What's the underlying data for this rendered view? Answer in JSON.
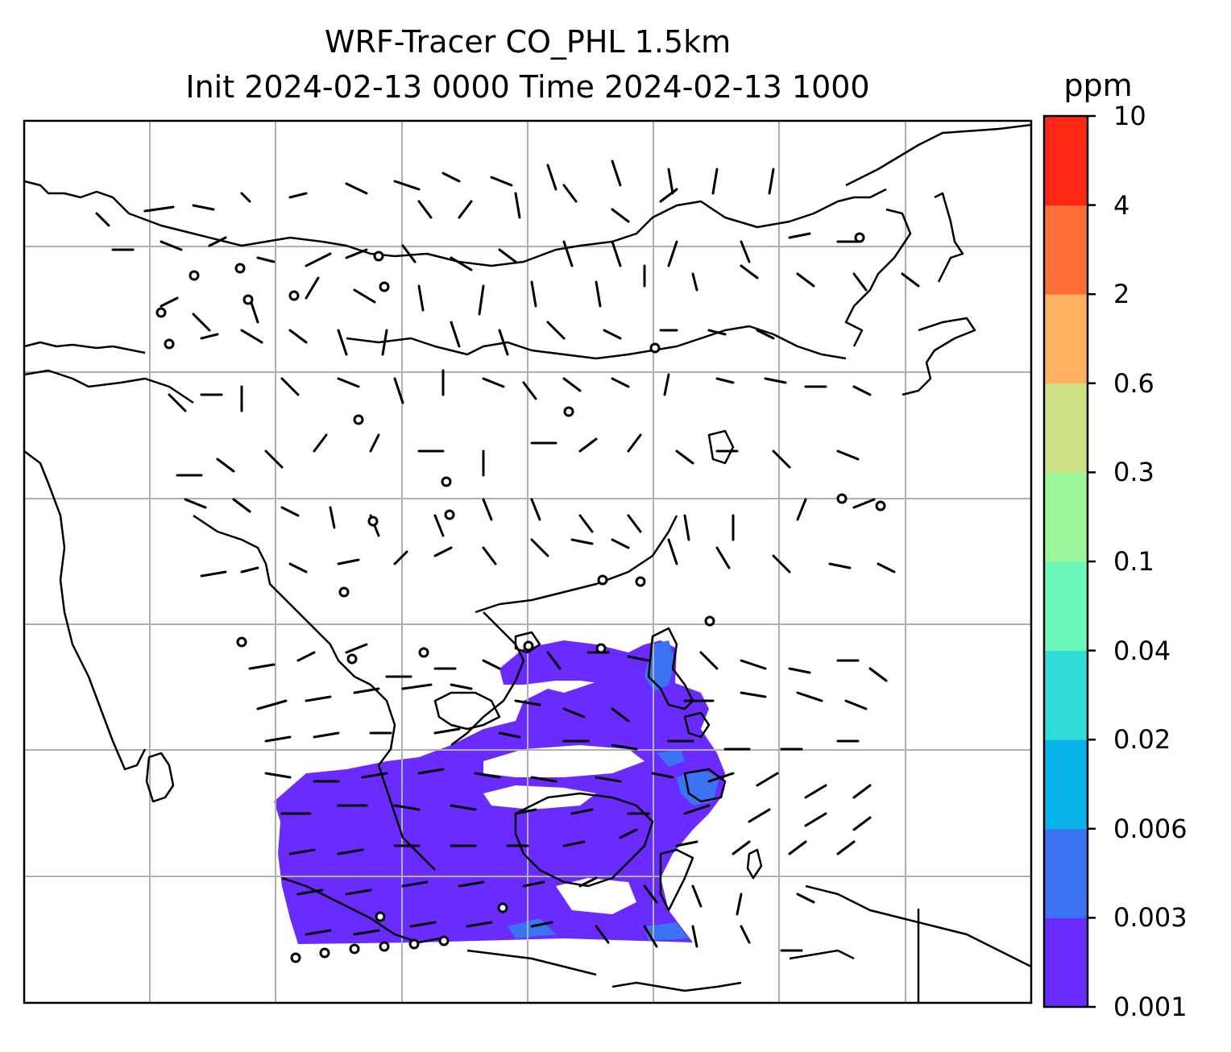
{
  "title": {
    "line1": "WRF-Tracer CO_PHL 1.5km",
    "line2": "Init 2024-02-13 0000 Time 2024-02-13 1000"
  },
  "colorbar": {
    "unit": "ppm",
    "ticks": [
      "0.001",
      "0.003",
      "0.006",
      "0.02",
      "0.04",
      "0.1",
      "0.3",
      "0.6",
      "2",
      "4",
      "10"
    ],
    "colors": [
      "#6a2bff",
      "#3a74f2",
      "#08b2ea",
      "#30dcd6",
      "#6cf7bb",
      "#9cf79b",
      "#cfe186",
      "#ffb060",
      "#ff7038",
      "#ff2814"
    ]
  },
  "map": {
    "gridlines": true,
    "overlays": [
      "coastlines",
      "wind-barbs",
      "station-markers"
    ],
    "tracer_fill_color": "#6a2bff",
    "tracer_highlight_color": "#3a74f2"
  }
}
